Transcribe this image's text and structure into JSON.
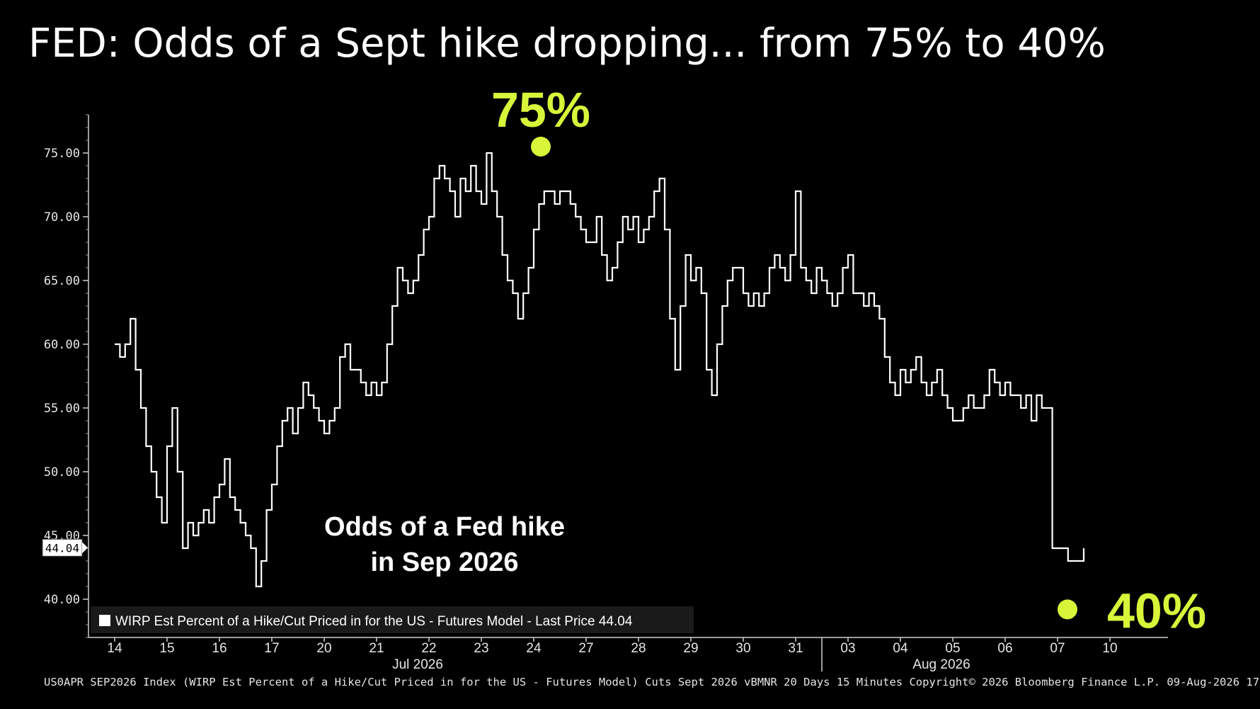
{
  "title": "FED: Odds of a Sept hike dropping... from 75% to 40%",
  "chart_data": {
    "type": "line",
    "ylim": [
      37,
      78
    ],
    "yticks": [
      40,
      45,
      50,
      55,
      60,
      65,
      70,
      75
    ],
    "ytick_labels": [
      "40.00",
      "45.00",
      "50.00",
      "55.00",
      "60.00",
      "65.00",
      "70.00",
      "75.00"
    ],
    "xticks": [
      "14",
      "15",
      "16",
      "17",
      "20",
      "21",
      "22",
      "23",
      "24",
      "27",
      "28",
      "29",
      "30",
      "31",
      "03",
      "04",
      "05",
      "06",
      "07",
      "10"
    ],
    "month_labels": [
      {
        "label": "Jul 2026",
        "tick": "22"
      },
      {
        "label": "Aug 2026",
        "tick": "05"
      }
    ],
    "month_separator_after": "31",
    "last_price": 44.04,
    "last_price_label": "44.04",
    "legend_text": "WIRP Est Percent of a Hike/Cut Priced in for the US - Futures Model - Last Price 44.04",
    "legend_position": "bottom-left",
    "annotation": "Odds of a Fed hike\nin Sep 2026",
    "highlight_points": [
      {
        "label": "75%",
        "tick": "24",
        "value": 75.5
      },
      {
        "label": "40%",
        "tick": "07",
        "value": 39.2
      }
    ],
    "series": [
      {
        "line_color": "#ffffff",
        "x": [
          0,
          0.1,
          0.2,
          0.3,
          0.4,
          0.5,
          0.6,
          0.7,
          0.8,
          0.9,
          1.0,
          1.1,
          1.2,
          1.3,
          1.4,
          1.5,
          1.6,
          1.7,
          1.8,
          1.9,
          2.0,
          2.1,
          2.2,
          2.3,
          2.4,
          2.5,
          2.6,
          2.7,
          2.8,
          2.9,
          3.0,
          3.1,
          3.2,
          3.3,
          3.4,
          3.5,
          3.6,
          3.7,
          3.8,
          3.9,
          4.0,
          4.1,
          4.2,
          4.3,
          4.4,
          4.5,
          4.6,
          4.7,
          4.8,
          4.9,
          5.0,
          5.1,
          5.2,
          5.3,
          5.4,
          5.5,
          5.6,
          5.7,
          5.8,
          5.9,
          6.0,
          6.1,
          6.2,
          6.3,
          6.4,
          6.5,
          6.6,
          6.7,
          6.8,
          6.9,
          7.0,
          7.1,
          7.2,
          7.3,
          7.4,
          7.5,
          7.6,
          7.7,
          7.8,
          7.9,
          8.0,
          8.1,
          8.2,
          8.3,
          8.4,
          8.5,
          8.6,
          8.7,
          8.8,
          8.9,
          9.0,
          9.1,
          9.2,
          9.3,
          9.4,
          9.5,
          9.6,
          9.7,
          9.8,
          9.9,
          10.0,
          10.1,
          10.2,
          10.3,
          10.4,
          10.5,
          10.6,
          10.7,
          10.8,
          10.9,
          11.0,
          11.1,
          11.2,
          11.3,
          11.4,
          11.5,
          11.6,
          11.7,
          11.8,
          11.9,
          12.0,
          12.1,
          12.2,
          12.3,
          12.4,
          12.5,
          12.6,
          12.7,
          12.8,
          12.9,
          13.0,
          13.1,
          13.2,
          13.3,
          13.4,
          13.5,
          13.6,
          13.7,
          13.8,
          13.9,
          14.0,
          14.1,
          14.2,
          14.3,
          14.4,
          14.5,
          14.6,
          14.7,
          14.8,
          14.9,
          15.0,
          15.1,
          15.2,
          15.3,
          15.4,
          15.5,
          15.6,
          15.7,
          15.8,
          15.9,
          16.0,
          16.1,
          16.2,
          16.3,
          16.4,
          16.5,
          16.6,
          16.7,
          16.8,
          16.9,
          17.0,
          17.1,
          17.2,
          17.3,
          17.4,
          17.5,
          17.6,
          17.7,
          17.8,
          17.9,
          18.0,
          18.1,
          18.2,
          18.3,
          18.4,
          18.5
        ],
        "values": [
          60,
          59,
          60,
          62,
          58,
          55,
          52,
          50,
          48,
          46,
          52,
          55,
          50,
          44,
          46,
          45,
          46,
          47,
          46,
          48,
          49,
          51,
          48,
          47,
          46,
          45,
          44,
          41,
          43,
          47,
          49,
          52,
          54,
          55,
          53,
          55,
          57,
          56,
          55,
          54,
          53,
          54,
          55,
          59,
          60,
          58,
          58,
          57,
          56,
          57,
          56,
          57,
          60,
          63,
          66,
          65,
          64,
          65,
          67,
          69,
          70,
          73,
          74,
          73,
          72,
          70,
          73,
          72,
          74,
          72,
          71,
          75,
          72,
          70,
          67,
          65,
          64,
          62,
          64,
          66,
          69,
          71,
          72,
          72,
          71,
          72,
          72,
          71,
          70,
          69,
          68,
          68,
          70,
          67,
          65,
          66,
          68,
          70,
          69,
          70,
          68,
          69,
          70,
          72,
          73,
          69,
          62,
          58,
          63,
          67,
          65,
          66,
          64,
          58,
          56,
          60,
          63,
          65,
          66,
          66,
          64,
          63,
          64,
          63,
          64,
          66,
          67,
          66,
          65,
          67,
          72,
          66,
          65,
          64,
          66,
          65,
          64,
          63,
          64,
          66,
          67,
          64,
          64,
          63,
          64,
          63,
          62,
          59,
          57,
          56,
          58,
          57,
          58,
          59,
          57,
          56,
          57,
          58,
          56,
          55,
          54,
          54,
          55,
          56,
          55,
          55,
          56,
          58,
          57,
          56,
          57,
          56,
          56,
          55,
          56,
          54,
          56,
          55,
          55,
          44,
          44,
          44,
          43,
          43,
          43,
          44
        ]
      }
    ]
  }
}
